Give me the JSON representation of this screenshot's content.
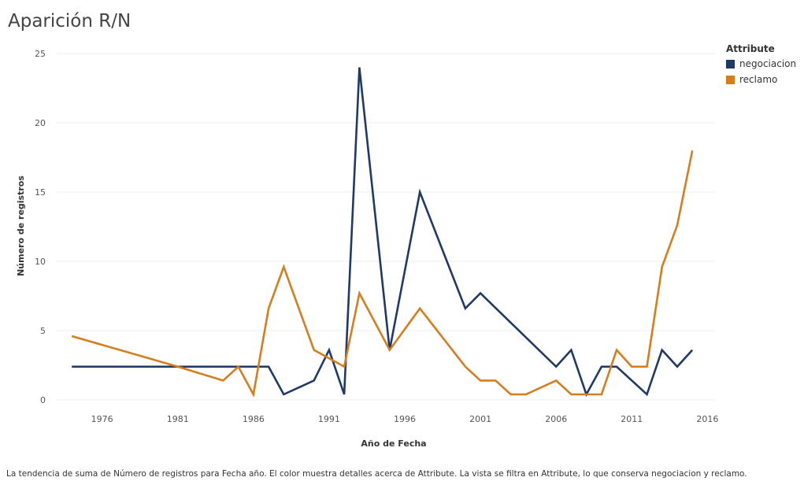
{
  "chart_data": {
    "type": "line",
    "title": "Aparición R/N",
    "xlabel": "Año de Fecha",
    "ylabel": "Número de registros",
    "xlim": [
      1973,
      2016.5
    ],
    "ylim": [
      0,
      25
    ],
    "x_ticks": [
      1976,
      1981,
      1986,
      1991,
      1996,
      2001,
      2006,
      2011,
      2016
    ],
    "y_ticks": [
      0,
      5,
      10,
      15,
      20,
      25
    ],
    "grid": true,
    "legend_title": "Attribute",
    "legend_position": "top-right",
    "series": [
      {
        "name": "negociacion",
        "color": "#1f3a66",
        "points": [
          {
            "x": 1974,
            "y": 2.4
          },
          {
            "x": 1987,
            "y": 2.4
          },
          {
            "x": 1988,
            "y": 0.4
          },
          {
            "x": 1990,
            "y": 1.4
          },
          {
            "x": 1991,
            "y": 3.6
          },
          {
            "x": 1992,
            "y": 0.4
          },
          {
            "x": 1993,
            "y": 24
          },
          {
            "x": 1995,
            "y": 3.6
          },
          {
            "x": 1997,
            "y": 15
          },
          {
            "x": 2000,
            "y": 6.6
          },
          {
            "x": 2001,
            "y": 7.7
          },
          {
            "x": 2006,
            "y": 2.4
          },
          {
            "x": 2007,
            "y": 3.6
          },
          {
            "x": 2008,
            "y": 0.4
          },
          {
            "x": 2009,
            "y": 2.4
          },
          {
            "x": 2010,
            "y": 2.4
          },
          {
            "x": 2012,
            "y": 0.4
          },
          {
            "x": 2013,
            "y": 3.6
          },
          {
            "x": 2014,
            "y": 2.4
          },
          {
            "x": 2015,
            "y": 3.6
          }
        ]
      },
      {
        "name": "reclamo",
        "color": "#d67d1e",
        "points": [
          {
            "x": 1974,
            "y": 4.6
          },
          {
            "x": 1981,
            "y": 2.4
          },
          {
            "x": 1984,
            "y": 1.4
          },
          {
            "x": 1985,
            "y": 2.4
          },
          {
            "x": 1986,
            "y": 0.4
          },
          {
            "x": 1987,
            "y": 6.6
          },
          {
            "x": 1988,
            "y": 9.6
          },
          {
            "x": 1990,
            "y": 3.6
          },
          {
            "x": 1992,
            "y": 2.4
          },
          {
            "x": 1993,
            "y": 7.7
          },
          {
            "x": 1995,
            "y": 3.6
          },
          {
            "x": 1997,
            "y": 6.6
          },
          {
            "x": 2000,
            "y": 2.4
          },
          {
            "x": 2001,
            "y": 1.4
          },
          {
            "x": 2002,
            "y": 1.4
          },
          {
            "x": 2003,
            "y": 0.4
          },
          {
            "x": 2004,
            "y": 0.4
          },
          {
            "x": 2006,
            "y": 1.4
          },
          {
            "x": 2007,
            "y": 0.4
          },
          {
            "x": 2009,
            "y": 0.4
          },
          {
            "x": 2010,
            "y": 3.6
          },
          {
            "x": 2011,
            "y": 2.4
          },
          {
            "x": 2012,
            "y": 2.4
          },
          {
            "x": 2013,
            "y": 9.6
          },
          {
            "x": 2014,
            "y": 12.6
          },
          {
            "x": 2015,
            "y": 18
          }
        ]
      }
    ],
    "caption": "La tendencia de suma de Número de registros para Fecha año.  El color muestra detalles acerca de Attribute. La vista se filtra en Attribute, lo que conserva negociacion y reclamo."
  }
}
